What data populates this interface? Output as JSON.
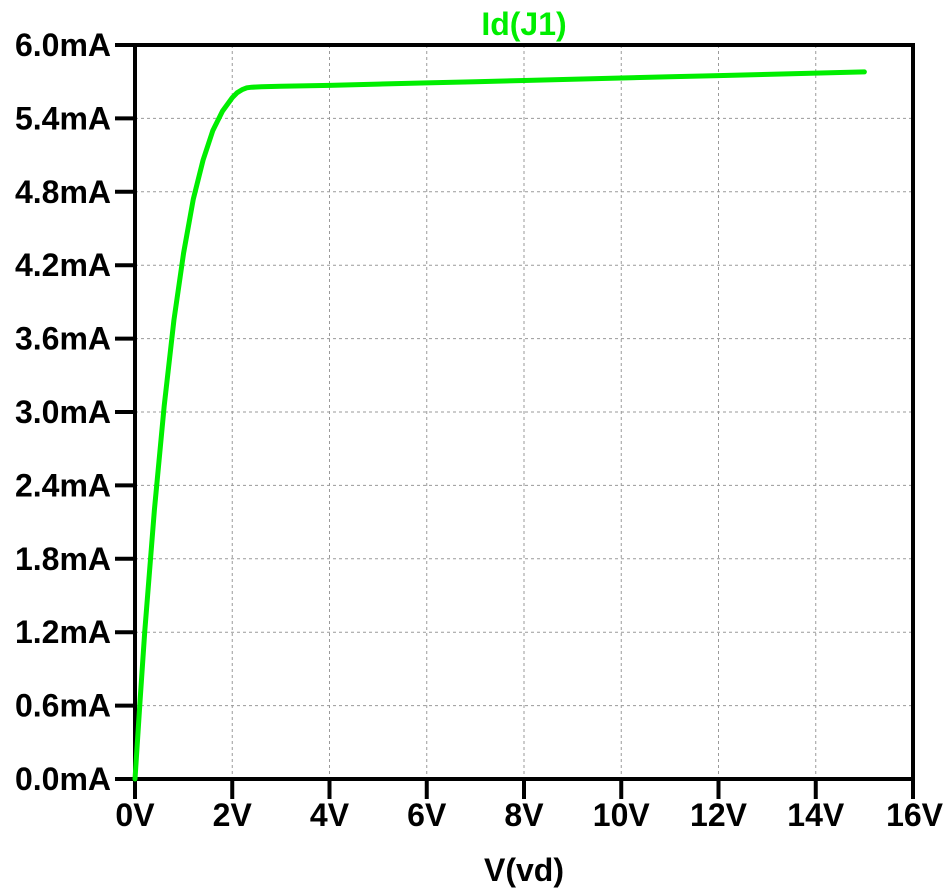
{
  "chart_data": {
    "type": "line",
    "title": "Id(J1)",
    "xlabel": "V(vd)",
    "ylabel": "",
    "xlim": [
      0,
      16
    ],
    "ylim": [
      0,
      6.0
    ],
    "x_ticks": [
      0,
      2,
      4,
      6,
      8,
      10,
      12,
      14,
      16
    ],
    "x_tick_labels": [
      "0V",
      "2V",
      "4V",
      "6V",
      "8V",
      "10V",
      "12V",
      "14V",
      "16V"
    ],
    "y_ticks": [
      0,
      0.6,
      1.2,
      1.8,
      2.4,
      3.0,
      3.6,
      4.2,
      4.8,
      5.4,
      6.0
    ],
    "y_tick_labels": [
      "0.0mA",
      "0.6mA",
      "1.2mA",
      "1.8mA",
      "2.4mA",
      "3.0mA",
      "3.6mA",
      "4.2mA",
      "4.8mA",
      "5.4mA",
      "6.0mA"
    ],
    "grid": true,
    "series": [
      {
        "name": "Id(J1)",
        "color": "#00ee00",
        "x": [
          0,
          0.1,
          0.2,
          0.4,
          0.6,
          0.8,
          1.0,
          1.2,
          1.4,
          1.6,
          1.8,
          2.0,
          2.1,
          2.2,
          2.3,
          2.4,
          2.6,
          3.0,
          4,
          5,
          6,
          7,
          8,
          9,
          10,
          11,
          12,
          13,
          14,
          15
        ],
        "y": [
          0,
          0.62,
          1.2,
          2.2,
          3.05,
          3.75,
          4.3,
          4.74,
          5.06,
          5.3,
          5.46,
          5.57,
          5.61,
          5.635,
          5.65,
          5.655,
          5.658,
          5.662,
          5.67,
          5.68,
          5.69,
          5.7,
          5.71,
          5.72,
          5.73,
          5.74,
          5.75,
          5.76,
          5.77,
          5.78
        ]
      }
    ]
  }
}
